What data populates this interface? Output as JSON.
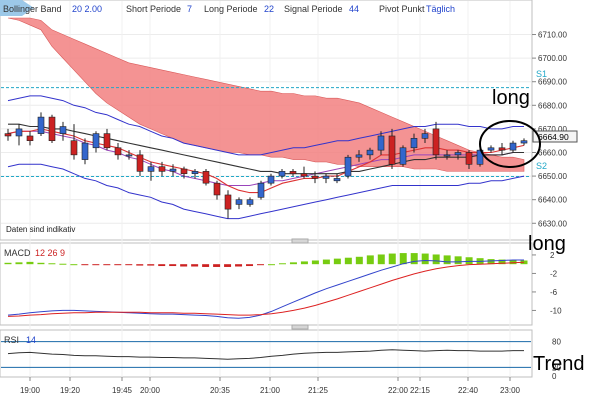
{
  "header": {
    "bollinger_label": "Bollinger Band",
    "bollinger_params": "20  2.00",
    "short_label": "Short Periode",
    "short_value": "7",
    "long_label": "Long Periode",
    "long_value": "22",
    "signal_label": "Signal Periode",
    "signal_value": "44",
    "pivot_label": "Pivot Punkt",
    "pivot_value": "Täglich"
  },
  "annotations": {
    "long_top": "long",
    "long_macd": "long",
    "trend_rsi": "Trend",
    "disclaimer": "Daten sind indikativ"
  },
  "price_axis": {
    "ticks": [
      "6710.00",
      "6700.00",
      "6690.00",
      "6680.00",
      "6670.00",
      "6660.00",
      "6650.00",
      "6640.00",
      "6630.00"
    ],
    "current_price": "6664.90",
    "s1_label": "S1",
    "s2_label": "S2"
  },
  "macd_panel": {
    "label": "MACD",
    "params": "12  26  9",
    "ticks": [
      "2",
      "-2",
      "-6",
      "-10"
    ]
  },
  "rsi_panel": {
    "label": "RSI",
    "param": "14",
    "ticks": [
      "80",
      "20",
      "0"
    ]
  },
  "time_axis": {
    "ticks": [
      "19:00",
      "19:20",
      "19:45",
      "20:00",
      "20:35",
      "21:00",
      "21:25",
      "22:00",
      "22:15",
      "22:40",
      "23:00"
    ]
  },
  "colors": {
    "cloud": "#f28080",
    "bollinger": "#3333cc",
    "candle_up": "#3366cc",
    "candle_down": "#cc2222",
    "macd_hist": "#77cc11",
    "macd_line": "#3344cc",
    "signal_line": "#dd2222",
    "pivot": "#22a8c8",
    "ichimoku_purple": "#9944bb"
  },
  "chart_data": {
    "type": "candlestick",
    "y_range": [
      6628,
      6717
    ],
    "candles": [
      {
        "o": 6668,
        "h": 6670,
        "l": 6665,
        "c": 6667
      },
      {
        "o": 6667,
        "h": 6672,
        "l": 6663,
        "c": 6670
      },
      {
        "o": 6667,
        "h": 6669,
        "l": 6663,
        "c": 6665
      },
      {
        "o": 6668,
        "h": 6677,
        "l": 6667,
        "c": 6675
      },
      {
        "o": 6675,
        "h": 6676,
        "l": 6664,
        "c": 6665
      },
      {
        "o": 6668,
        "h": 6673,
        "l": 6665,
        "c": 6671
      },
      {
        "o": 6665,
        "h": 6672,
        "l": 6657,
        "c": 6659
      },
      {
        "o": 6657,
        "h": 6666,
        "l": 6655,
        "c": 6664
      },
      {
        "o": 6662,
        "h": 6669,
        "l": 6660,
        "c": 6668
      },
      {
        "o": 6668,
        "h": 6670,
        "l": 6661,
        "c": 6662
      },
      {
        "o": 6662,
        "h": 6664,
        "l": 6657,
        "c": 6659
      },
      {
        "o": 6659,
        "h": 6661,
        "l": 6657,
        "c": 6659
      },
      {
        "o": 6659,
        "h": 6661,
        "l": 6650,
        "c": 6652
      },
      {
        "o": 6652,
        "h": 6656,
        "l": 6648,
        "c": 6654
      },
      {
        "o": 6654,
        "h": 6656,
        "l": 6650,
        "c": 6652
      },
      {
        "o": 6652,
        "h": 6655,
        "l": 6650,
        "c": 6653
      },
      {
        "o": 6653,
        "h": 6654,
        "l": 6649,
        "c": 6651
      },
      {
        "o": 6651,
        "h": 6653,
        "l": 6649,
        "c": 6652
      },
      {
        "o": 6652,
        "h": 6653,
        "l": 6646,
        "c": 6647
      },
      {
        "o": 6647,
        "h": 6648,
        "l": 6640,
        "c": 6642
      },
      {
        "o": 6642,
        "h": 6644,
        "l": 6632,
        "c": 6636
      },
      {
        "o": 6638,
        "h": 6641,
        "l": 6636,
        "c": 6640
      },
      {
        "o": 6638,
        "h": 6641,
        "l": 6637,
        "c": 6640
      },
      {
        "o": 6641,
        "h": 6648,
        "l": 6640,
        "c": 6647
      },
      {
        "o": 6647,
        "h": 6651,
        "l": 6646,
        "c": 6650
      },
      {
        "o": 6650,
        "h": 6653,
        "l": 6649,
        "c": 6652
      },
      {
        "o": 6652,
        "h": 6653,
        "l": 6650,
        "c": 6651
      },
      {
        "o": 6651,
        "h": 6654,
        "l": 6649,
        "c": 6650
      },
      {
        "o": 6650,
        "h": 6652,
        "l": 6647,
        "c": 6649
      },
      {
        "o": 6649,
        "h": 6651,
        "l": 6647,
        "c": 6650
      },
      {
        "o": 6648,
        "h": 6651,
        "l": 6647,
        "c": 6649
      },
      {
        "o": 6650,
        "h": 6659,
        "l": 6649,
        "c": 6658
      },
      {
        "o": 6658,
        "h": 6661,
        "l": 6656,
        "c": 6659
      },
      {
        "o": 6659,
        "h": 6662,
        "l": 6657,
        "c": 6661
      },
      {
        "o": 6661,
        "h": 6669,
        "l": 6659,
        "c": 6667
      },
      {
        "o": 6667,
        "h": 6670,
        "l": 6653,
        "c": 6655
      },
      {
        "o": 6655,
        "h": 6663,
        "l": 6654,
        "c": 6662
      },
      {
        "o": 6662,
        "h": 6668,
        "l": 6660,
        "c": 6666
      },
      {
        "o": 6666,
        "h": 6670,
        "l": 6664,
        "c": 6668
      },
      {
        "o": 6670,
        "h": 6673,
        "l": 6657,
        "c": 6659
      },
      {
        "o": 6659,
        "h": 6661,
        "l": 6657,
        "c": 6659
      },
      {
        "o": 6659,
        "h": 6661,
        "l": 6657,
        "c": 6660
      },
      {
        "o": 6660,
        "h": 6661,
        "l": 6653,
        "c": 6655
      },
      {
        "o": 6655,
        "h": 6662,
        "l": 6654,
        "c": 6661
      },
      {
        "o": 6661,
        "h": 6663,
        "l": 6660,
        "c": 6662
      },
      {
        "o": 6662,
        "h": 6664,
        "l": 6659,
        "c": 6661
      },
      {
        "o": 6661,
        "h": 6665,
        "l": 6660,
        "c": 6664
      },
      {
        "o": 6664,
        "h": 6666,
        "l": 6663,
        "c": 6665
      }
    ],
    "cloud_upper": [
      6717,
      6717,
      6717,
      6716,
      6712,
      6710,
      6708,
      6706,
      6704,
      6702,
      6700,
      6698,
      6697,
      6696,
      6695,
      6694,
      6693,
      6692,
      6691,
      6690,
      6689,
      6688,
      6687,
      6686,
      6686,
      6685,
      6685,
      6684,
      6684,
      6683,
      6683,
      6682,
      6681,
      6679,
      6677,
      6675,
      6673,
      6671,
      6669,
      6667,
      6665,
      6663,
      6661,
      6660,
      6659,
      6658,
      6658,
      6657
    ],
    "cloud_lower": [
      6717,
      6716,
      6714,
      6712,
      6705,
      6700,
      6695,
      6690,
      6685,
      6681,
      6678,
      6675,
      6672,
      6670,
      6668,
      6666,
      6664,
      6663,
      6662,
      6661,
      6660,
      6660,
      6659,
      6659,
      6658,
      6658,
      6657,
      6657,
      6656,
      6656,
      6655,
      6655,
      6654,
      6654,
      6654,
      6654,
      6654,
      6653,
      6653,
      6653,
      6652,
      6652,
      6652,
      6652,
      6652,
      6652,
      6652,
      6652
    ],
    "bb_upper": [
      6682,
      6683,
      6684,
      6684,
      6683,
      6682,
      6680,
      6679,
      6677,
      6676,
      6674,
      6672,
      6671,
      6669,
      6667,
      6666,
      6664,
      6663,
      6662,
      6661,
      6660,
      6659,
      6659,
      6659,
      6660,
      6661,
      6662,
      6662,
      6663,
      6664,
      6665,
      6665,
      6666,
      6667,
      6668,
      6669,
      6670,
      6671,
      6671,
      6672,
      6672,
      6672,
      6671,
      6671,
      6670,
      6670,
      6671,
      6671
    ],
    "bb_middle": [
      6668,
      6669,
      6669,
      6669,
      6668,
      6667,
      6666,
      6664,
      6663,
      6661,
      6660,
      6658,
      6657,
      6655,
      6653,
      6652,
      6650,
      6649,
      6648,
      6647,
      6646,
      6646,
      6646,
      6647,
      6648,
      6648,
      6649,
      6650,
      6651,
      6652,
      6653,
      6654,
      6655,
      6656,
      6657,
      6657,
      6658,
      6659,
      6659,
      6659,
      6659,
      6659,
      6659,
      6659,
      6659,
      6659,
      6660,
      6660
    ],
    "bb_lower": [
      6654,
      6655,
      6655,
      6655,
      6654,
      6653,
      6651,
      6649,
      6648,
      6646,
      6645,
      6643,
      6642,
      6641,
      6639,
      6638,
      6636,
      6635,
      6634,
      6633,
      6632,
      6632,
      6633,
      6634,
      6635,
      6636,
      6637,
      6638,
      6639,
      6640,
      6641,
      6642,
      6643,
      6644,
      6645,
      6646,
      6646,
      6646,
      6646,
      6646,
      6646,
      6646,
      6647,
      6647,
      6648,
      6648,
      6649,
      6650
    ],
    "ma_fast": [
      6668,
      6669,
      6669,
      6670,
      6669,
      6668,
      6667,
      6665,
      6664,
      6663,
      6662,
      6660,
      6658,
      6656,
      6655,
      6654,
      6653,
      6652,
      6651,
      6649,
      6646,
      6644,
      6643,
      6643,
      6645,
      6647,
      6648,
      6649,
      6649,
      6650,
      6650,
      6652,
      6654,
      6656,
      6659,
      6659,
      6660,
      6661,
      6662,
      6662,
      6661,
      6661,
      6660,
      6660,
      6660,
      6661,
      6662,
      6663
    ],
    "ma_slow": [
      6672,
      6672,
      6671,
      6671,
      6670,
      6670,
      6669,
      6668,
      6667,
      6666,
      6665,
      6664,
      6663,
      6662,
      6661,
      6660,
      6659,
      6658,
      6657,
      6656,
      6655,
      6654,
      6653,
      6652,
      6652,
      6651,
      6651,
      6651,
      6651,
      6651,
      6651,
      6652,
      6652,
      6653,
      6654,
      6655,
      6656,
      6657,
      6657,
      6658,
      6658,
      6658,
      6658,
      6659,
      6659,
      6659,
      6660,
      6660
    ],
    "pivot_s1": 6687.5,
    "pivot_s2": 6649.8,
    "macd_hist": [
      0.3,
      0.4,
      0.5,
      0.3,
      0.2,
      0.1,
      0.0,
      -0.1,
      -0.1,
      -0.1,
      -0.2,
      -0.2,
      -0.3,
      -0.3,
      -0.4,
      -0.4,
      -0.5,
      -0.5,
      -0.6,
      -0.6,
      -0.6,
      -0.5,
      -0.4,
      -0.2,
      0.0,
      0.2,
      0.4,
      0.6,
      0.8,
      1.0,
      1.2,
      1.4,
      1.6,
      1.9,
      2.1,
      2.3,
      2.4,
      2.4,
      2.3,
      2.1,
      1.9,
      1.7,
      1.5,
      1.3,
      1.1,
      1.0,
      0.9,
      0.8
    ],
    "macd_line": [
      -11.0,
      -10.8,
      -10.5,
      -10.3,
      -10.1,
      -10.0,
      -10.0,
      -10.1,
      -10.2,
      -10.3,
      -10.4,
      -10.5,
      -10.6,
      -10.7,
      -10.8,
      -10.8,
      -10.9,
      -11.0,
      -11.1,
      -11.3,
      -11.6,
      -11.7,
      -11.5,
      -11.0,
      -10.2,
      -9.2,
      -8.2,
      -7.2,
      -6.2,
      -5.3,
      -4.5,
      -3.7,
      -2.9,
      -2.1,
      -1.3,
      -0.6,
      0.1,
      0.6,
      0.8,
      0.7,
      0.5,
      0.5,
      0.6,
      0.6,
      0.7,
      0.8,
      0.9,
      0.9
    ],
    "signal_line": [
      -11.3,
      -11.2,
      -11.0,
      -10.9,
      -10.7,
      -10.6,
      -10.5,
      -10.5,
      -10.4,
      -10.4,
      -10.4,
      -10.4,
      -10.4,
      -10.5,
      -10.5,
      -10.5,
      -10.6,
      -10.6,
      -10.7,
      -10.8,
      -10.9,
      -11.0,
      -11.0,
      -10.9,
      -10.7,
      -10.4,
      -10.0,
      -9.5,
      -8.9,
      -8.2,
      -7.5,
      -6.7,
      -5.9,
      -5.1,
      -4.3,
      -3.5,
      -2.8,
      -2.1,
      -1.5,
      -1.0,
      -0.6,
      -0.3,
      -0.1,
      0.0,
      0.1,
      0.2,
      0.3,
      0.4
    ],
    "macd_range": [
      -12.5,
      3.5
    ],
    "rsi": [
      52,
      54,
      55,
      53,
      51,
      50,
      48,
      47,
      47,
      46,
      45,
      45,
      44,
      44,
      43,
      43,
      42,
      42,
      41,
      40,
      39,
      40,
      41,
      43,
      46,
      48,
      51,
      53,
      54,
      55,
      55,
      56,
      57,
      58,
      60,
      61,
      60,
      59,
      58,
      59,
      60,
      59,
      59,
      58,
      58,
      58,
      59,
      59
    ],
    "rsi_range": [
      0,
      100
    ],
    "rsi_levels": [
      80,
      20
    ]
  }
}
